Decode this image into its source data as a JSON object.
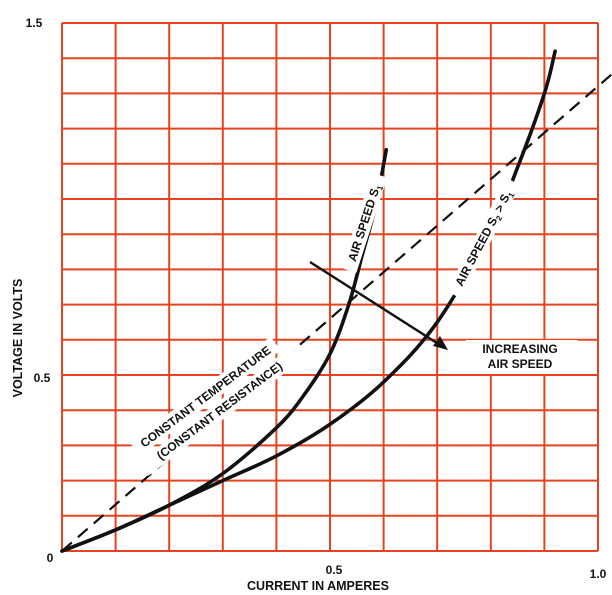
{
  "chart_data": {
    "type": "line",
    "title": "",
    "xlabel": "CURRENT IN AMPERES",
    "ylabel": "VOLTAGE IN VOLTS",
    "xlim": [
      0,
      1.0
    ],
    "ylim": [
      0,
      1.5
    ],
    "x_ticks": [
      "0.5",
      "1.0"
    ],
    "y_ticks": [
      "0",
      "0.5",
      "1.5"
    ],
    "grid": true,
    "grid_color": "#e8431e",
    "line_color": "#111111",
    "series": [
      {
        "name": "AIR SPEED S1",
        "style": "solid",
        "x": [
          0,
          0.1,
          0.2,
          0.3,
          0.4,
          0.45,
          0.5,
          0.535,
          0.56,
          0.585,
          0.605
        ],
        "y": [
          0,
          0.06,
          0.13,
          0.22,
          0.35,
          0.44,
          0.56,
          0.7,
          0.84,
          0.98,
          1.14
        ]
      },
      {
        "name": "AIR SPEED S2 > S1",
        "style": "solid",
        "x": [
          0,
          0.1,
          0.2,
          0.3,
          0.4,
          0.5,
          0.6,
          0.7,
          0.8,
          0.85,
          0.9,
          0.92
        ],
        "y": [
          0,
          0.06,
          0.13,
          0.2,
          0.27,
          0.36,
          0.48,
          0.65,
          0.91,
          1.09,
          1.3,
          1.42
        ]
      },
      {
        "name": "CONSTANT TEMPERATURE (CONSTANT RESISTANCE)",
        "style": "dashed",
        "x": [
          0,
          1.03
        ],
        "y": [
          0,
          1.36
        ]
      }
    ],
    "annotations": {
      "constant_line_1": "CONSTANT TEMPERATURE",
      "constant_line_2": "(CONSTANT RESISTANCE)",
      "s1_main": "AIR SPEED S",
      "s1_sub": "1",
      "s2_main": "AIR SPEED S",
      "s2_sub": "2",
      "s2_gt": " > S",
      "s2_sub2": "1",
      "arrow_line_1": "INCREASING",
      "arrow_line_2": "AIR SPEED"
    }
  }
}
